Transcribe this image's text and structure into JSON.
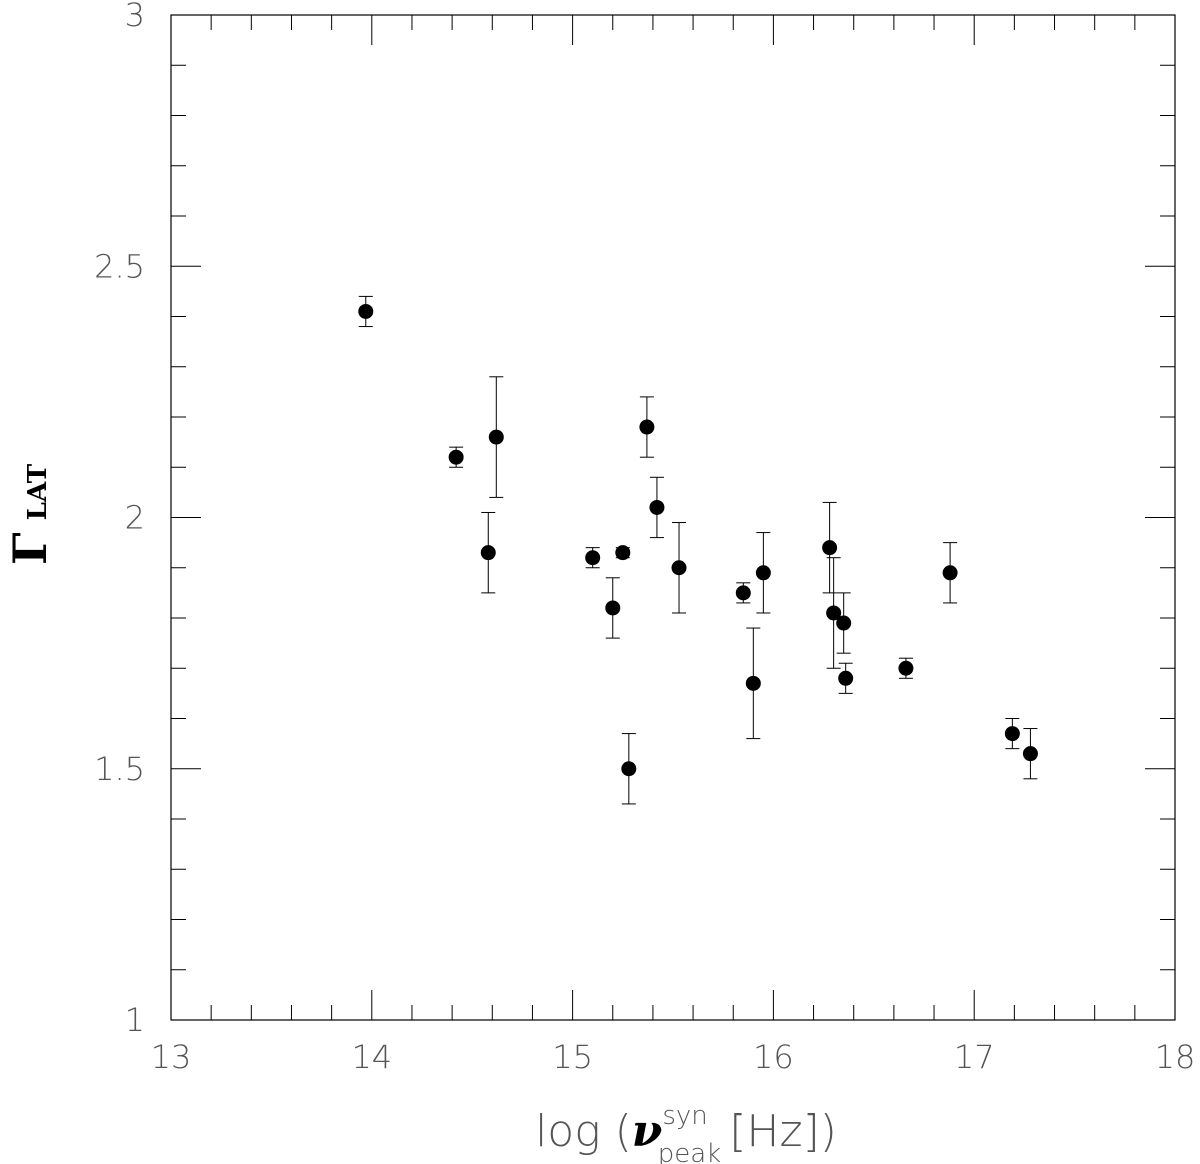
{
  "chart_data": {
    "type": "scatter",
    "xlabel": {
      "prefix": "log (",
      "symbol": "ν",
      "superscript": "syn",
      "subscript": "peak",
      "unit": "[Hz])"
    },
    "ylabel": {
      "symbol": "Γ",
      "subscript": "LAT"
    },
    "xlim": [
      13,
      18
    ],
    "ylim": [
      1,
      3
    ],
    "xticks": [
      "13",
      "14",
      "15",
      "16",
      "17",
      "18"
    ],
    "yticks": [
      "1",
      "1.5",
      "2",
      "2.5",
      "3"
    ],
    "grid": false,
    "error_bars": true,
    "points": [
      {
        "x": 13.97,
        "y": 2.41,
        "err": 0.03
      },
      {
        "x": 14.42,
        "y": 2.12,
        "err": 0.02
      },
      {
        "x": 14.58,
        "y": 1.93,
        "err": 0.08
      },
      {
        "x": 14.62,
        "y": 2.16,
        "err": 0.12
      },
      {
        "x": 15.1,
        "y": 1.92,
        "err": 0.02
      },
      {
        "x": 15.2,
        "y": 1.82,
        "err": 0.06
      },
      {
        "x": 15.25,
        "y": 1.93,
        "err": 0.01
      },
      {
        "x": 15.28,
        "y": 1.5,
        "err": 0.07
      },
      {
        "x": 15.37,
        "y": 2.18,
        "err": 0.06
      },
      {
        "x": 15.42,
        "y": 2.02,
        "err": 0.06
      },
      {
        "x": 15.53,
        "y": 1.9,
        "err": 0.09
      },
      {
        "x": 15.85,
        "y": 1.85,
        "err": 0.02
      },
      {
        "x": 15.9,
        "y": 1.67,
        "err": 0.11
      },
      {
        "x": 15.95,
        "y": 1.89,
        "err": 0.08
      },
      {
        "x": 16.28,
        "y": 1.94,
        "err": 0.09
      },
      {
        "x": 16.3,
        "y": 1.81,
        "err": 0.11
      },
      {
        "x": 16.35,
        "y": 1.79,
        "err": 0.06
      },
      {
        "x": 16.36,
        "y": 1.68,
        "err": 0.03
      },
      {
        "x": 16.66,
        "y": 1.7,
        "err": 0.02
      },
      {
        "x": 16.88,
        "y": 1.89,
        "err": 0.06
      },
      {
        "x": 17.19,
        "y": 1.57,
        "err": 0.03
      },
      {
        "x": 17.28,
        "y": 1.53,
        "err": 0.05
      }
    ]
  }
}
